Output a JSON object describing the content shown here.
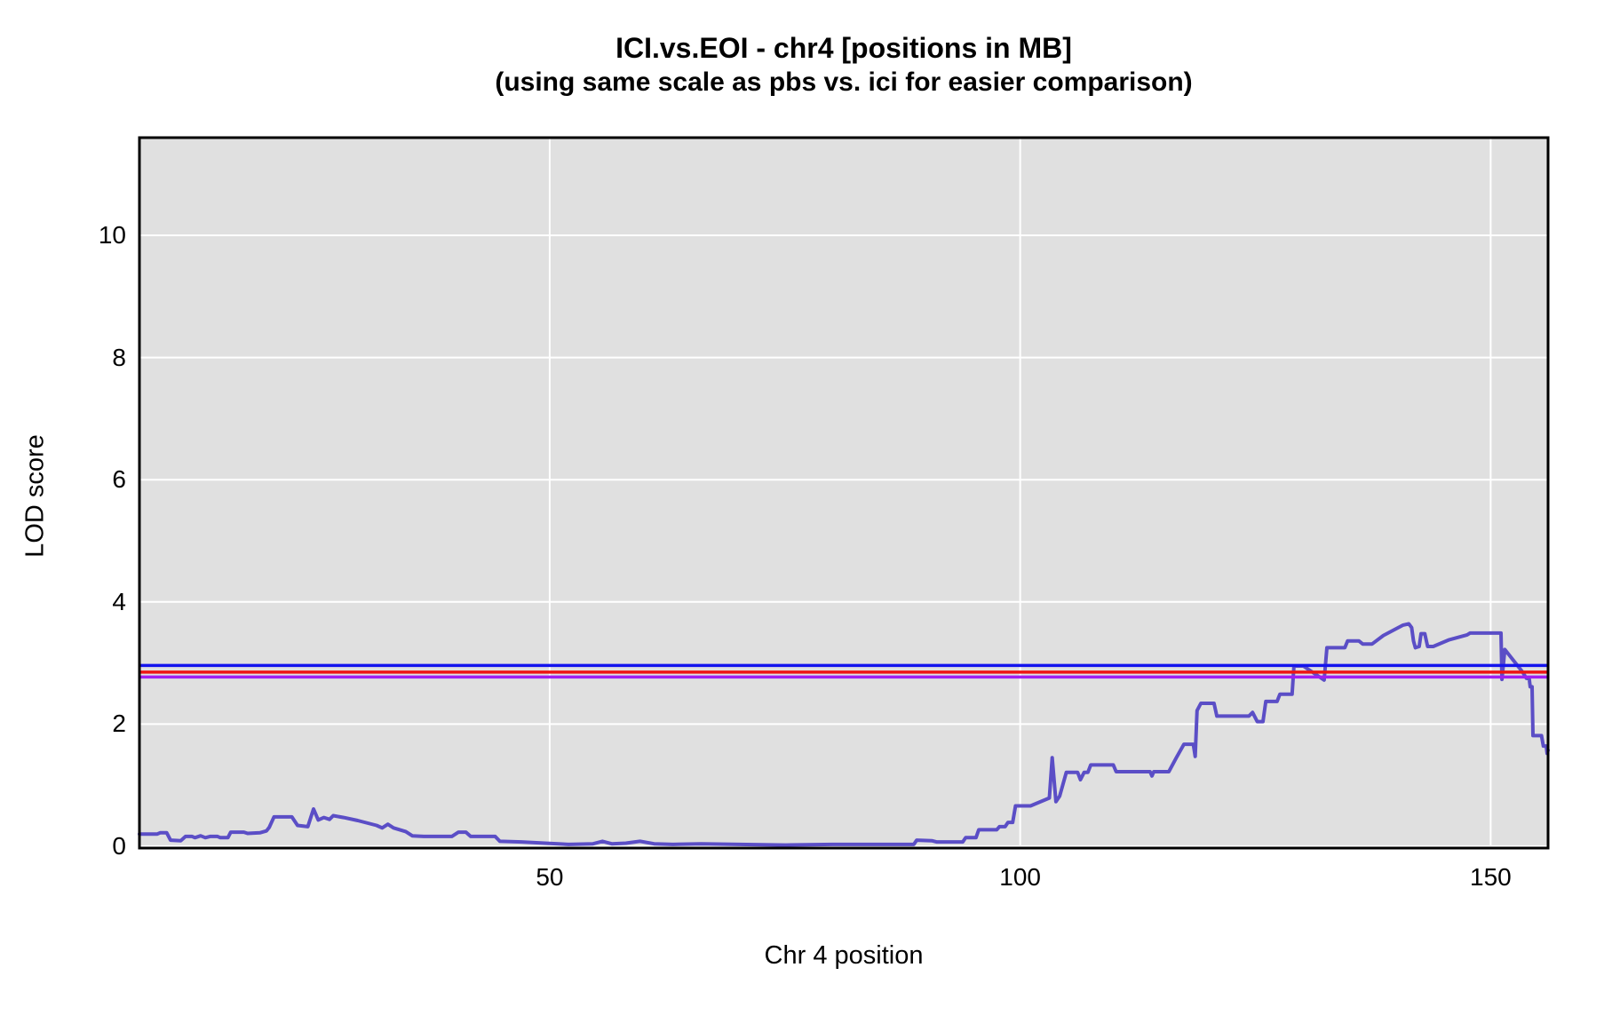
{
  "chart_data": {
    "type": "line",
    "title": "ICI.vs.EOI - chr4 [positions in MB]",
    "subtitle": "(using same scale as pbs vs. ici for easier comparison)",
    "xlabel": "Chr 4 position",
    "ylabel": "LOD score",
    "xlim": [
      6.4,
      156.1
    ],
    "ylim": [
      -0.03,
      11.6
    ],
    "xticks": [
      50,
      100,
      150
    ],
    "yticks": [
      0,
      2,
      4,
      6,
      8,
      10
    ],
    "grid": true,
    "legend": "none",
    "panel_background": "#e0e0e0",
    "grid_color": "#ffffff",
    "border_color": "#000000",
    "threshold_lines": [
      {
        "name": "threshold-blue",
        "value": 2.96,
        "color": "#1414ee"
      },
      {
        "name": "threshold-red",
        "value": 2.85,
        "color": "#ee1414"
      },
      {
        "name": "threshold-purple",
        "value": 2.77,
        "color": "#a020f0"
      }
    ],
    "series": [
      {
        "name": "lod-curve",
        "color": "#5b4ec6",
        "stroke_width": 4,
        "points": [
          [
            6.4,
            0.2
          ],
          [
            8.3,
            0.2
          ],
          [
            8.6,
            0.22
          ],
          [
            9.3,
            0.22
          ],
          [
            9.7,
            0.1
          ],
          [
            10.8,
            0.09
          ],
          [
            11.3,
            0.16
          ],
          [
            12.0,
            0.16
          ],
          [
            12.3,
            0.14
          ],
          [
            12.9,
            0.17
          ],
          [
            13.4,
            0.14
          ],
          [
            13.9,
            0.16
          ],
          [
            14.7,
            0.16
          ],
          [
            15.0,
            0.14
          ],
          [
            15.8,
            0.14
          ],
          [
            16.1,
            0.23
          ],
          [
            17.5,
            0.23
          ],
          [
            17.9,
            0.21
          ],
          [
            19.2,
            0.22
          ],
          [
            19.9,
            0.25
          ],
          [
            20.2,
            0.31
          ],
          [
            20.7,
            0.48
          ],
          [
            22.6,
            0.48
          ],
          [
            23.2,
            0.34
          ],
          [
            24.3,
            0.32
          ],
          [
            24.9,
            0.61
          ],
          [
            25.4,
            0.43
          ],
          [
            26.0,
            0.47
          ],
          [
            26.6,
            0.44
          ],
          [
            27.0,
            0.5
          ],
          [
            28.1,
            0.47
          ],
          [
            29.6,
            0.42
          ],
          [
            31.6,
            0.34
          ],
          [
            32.2,
            0.3
          ],
          [
            32.8,
            0.36
          ],
          [
            33.4,
            0.3
          ],
          [
            34.7,
            0.24
          ],
          [
            35.4,
            0.17
          ],
          [
            36.6,
            0.16
          ],
          [
            39.6,
            0.16
          ],
          [
            40.3,
            0.23
          ],
          [
            41.1,
            0.23
          ],
          [
            41.6,
            0.16
          ],
          [
            44.2,
            0.16
          ],
          [
            44.7,
            0.08
          ],
          [
            47.0,
            0.07
          ],
          [
            49.5,
            0.05
          ],
          [
            52.0,
            0.03
          ],
          [
            54.6,
            0.04
          ],
          [
            55.6,
            0.08
          ],
          [
            56.6,
            0.04
          ],
          [
            58.1,
            0.05
          ],
          [
            59.6,
            0.08
          ],
          [
            61.1,
            0.04
          ],
          [
            63.1,
            0.03
          ],
          [
            66.1,
            0.04
          ],
          [
            70.1,
            0.03
          ],
          [
            75.1,
            0.02
          ],
          [
            80.1,
            0.03
          ],
          [
            85.1,
            0.03
          ],
          [
            88.7,
            0.03
          ],
          [
            89.0,
            0.1
          ],
          [
            90.6,
            0.09
          ],
          [
            91.1,
            0.07
          ],
          [
            93.9,
            0.07
          ],
          [
            94.2,
            0.14
          ],
          [
            95.3,
            0.14
          ],
          [
            95.6,
            0.27
          ],
          [
            97.5,
            0.27
          ],
          [
            97.8,
            0.32
          ],
          [
            98.4,
            0.32
          ],
          [
            98.7,
            0.39
          ],
          [
            99.2,
            0.39
          ],
          [
            99.5,
            0.66
          ],
          [
            101.1,
            0.66
          ],
          [
            103.1,
            0.79
          ],
          [
            103.4,
            1.45
          ],
          [
            103.8,
            0.73
          ],
          [
            104.2,
            0.82
          ],
          [
            104.9,
            1.21
          ],
          [
            106.1,
            1.21
          ],
          [
            106.4,
            1.09
          ],
          [
            106.8,
            1.21
          ],
          [
            107.2,
            1.21
          ],
          [
            107.5,
            1.33
          ],
          [
            109.9,
            1.33
          ],
          [
            110.2,
            1.22
          ],
          [
            113.8,
            1.22
          ],
          [
            114.0,
            1.15
          ],
          [
            114.2,
            1.22
          ],
          [
            115.8,
            1.22
          ],
          [
            116.6,
            1.45
          ],
          [
            117.4,
            1.67
          ],
          [
            118.4,
            1.67
          ],
          [
            118.6,
            1.47
          ],
          [
            118.8,
            2.22
          ],
          [
            119.2,
            2.34
          ],
          [
            120.6,
            2.34
          ],
          [
            120.9,
            2.13
          ],
          [
            124.3,
            2.13
          ],
          [
            124.7,
            2.19
          ],
          [
            125.2,
            2.04
          ],
          [
            125.8,
            2.04
          ],
          [
            126.1,
            2.37
          ],
          [
            127.3,
            2.37
          ],
          [
            127.6,
            2.49
          ],
          [
            128.9,
            2.49
          ],
          [
            129.1,
            2.95
          ],
          [
            130.1,
            2.95
          ],
          [
            132.3,
            2.72
          ],
          [
            132.6,
            3.25
          ],
          [
            134.5,
            3.25
          ],
          [
            134.8,
            3.36
          ],
          [
            136.0,
            3.36
          ],
          [
            136.4,
            3.31
          ],
          [
            137.4,
            3.31
          ],
          [
            138.6,
            3.45
          ],
          [
            140.7,
            3.62
          ],
          [
            141.3,
            3.64
          ],
          [
            141.6,
            3.58
          ],
          [
            141.8,
            3.36
          ],
          [
            142.0,
            3.25
          ],
          [
            142.4,
            3.27
          ],
          [
            142.6,
            3.48
          ],
          [
            143.0,
            3.48
          ],
          [
            143.3,
            3.27
          ],
          [
            143.9,
            3.27
          ],
          [
            145.6,
            3.38
          ],
          [
            147.5,
            3.46
          ],
          [
            147.8,
            3.49
          ],
          [
            151.1,
            3.49
          ],
          [
            151.2,
            2.73
          ],
          [
            151.5,
            3.22
          ],
          [
            153.4,
            2.85
          ],
          [
            153.8,
            2.75
          ],
          [
            154.1,
            2.74
          ],
          [
            154.2,
            2.61
          ],
          [
            154.4,
            2.61
          ],
          [
            154.5,
            1.81
          ],
          [
            155.4,
            1.81
          ],
          [
            155.6,
            1.64
          ],
          [
            155.9,
            1.64
          ],
          [
            156.0,
            1.52
          ],
          [
            156.1,
            1.57
          ]
        ]
      }
    ]
  }
}
